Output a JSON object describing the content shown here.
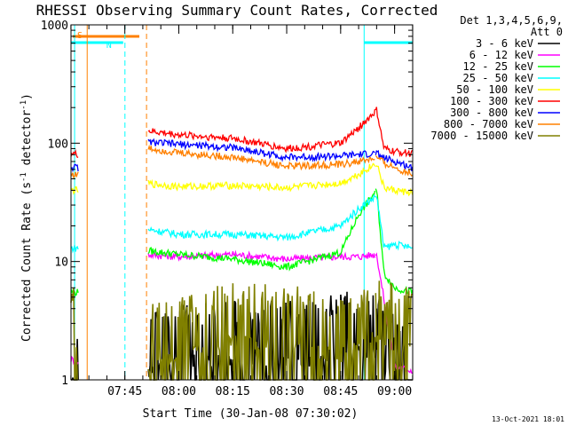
{
  "chart_data": {
    "type": "line",
    "title": "RHESSI Observing Summary Count Rates, Corrected",
    "xlabel": "Start Time (30-Jan-08 07:30:02)",
    "ylabel_main": "Corrected Count Rate (s",
    "ylabel_sup1": "-1",
    "ylabel_mid": " detector",
    "ylabel_sup2": "-1",
    "ylabel_end": ")",
    "y_scale": "log",
    "ylim": [
      1,
      1000
    ],
    "xlim_minutes": [
      0,
      95
    ],
    "x_ticks": [
      {
        "label": "07:45",
        "minutes": 14.97
      },
      {
        "label": "08:00",
        "minutes": 29.97
      },
      {
        "label": "08:15",
        "minutes": 44.97
      },
      {
        "label": "08:30",
        "minutes": 59.97
      },
      {
        "label": "08:45",
        "minutes": 74.97
      },
      {
        "label": "09:00",
        "minutes": 89.97
      }
    ],
    "y_ticks": [
      {
        "label": "1",
        "value": 1
      },
      {
        "label": "10",
        "value": 10
      },
      {
        "label": "100",
        "value": 100
      },
      {
        "label": "1000",
        "value": 1000
      }
    ],
    "legend_header": [
      "Det 1,3,4,5,6,9,",
      "Att 0"
    ],
    "legend_position": "right",
    "series": [
      {
        "name": "3 - 6 keV",
        "color": "#000000",
        "x": [
          0,
          2,
          20,
          30,
          45,
          60,
          75,
          80,
          85,
          90,
          95
        ],
        "values": [
          1.5,
          1.4,
          1.6,
          2.0,
          2.2,
          2.0,
          2.4,
          2.5,
          2.4,
          1.5,
          1.2
        ]
      },
      {
        "name": "6 - 12 keV",
        "color": "#ff00ff",
        "x": [
          0,
          2,
          20,
          30,
          45,
          60,
          75,
          80,
          85,
          90,
          95
        ],
        "values": [
          1.5,
          1.4,
          11.5,
          11.0,
          11.5,
          10.5,
          11.0,
          11.0,
          11.5,
          1.3,
          1.2
        ]
      },
      {
        "name": "12 - 25 keV",
        "color": "#00ff00",
        "x": [
          0,
          2,
          20,
          30,
          45,
          60,
          75,
          80,
          85,
          87,
          90,
          95
        ],
        "values": [
          5.5,
          5.5,
          12.5,
          11.5,
          10.5,
          9.0,
          12.0,
          25.0,
          40.0,
          8.0,
          6.0,
          5.5
        ]
      },
      {
        "name": "25 - 50 keV",
        "color": "#00ffff",
        "x": [
          0,
          2,
          20,
          30,
          45,
          60,
          75,
          80,
          85,
          87,
          90,
          95
        ],
        "values": [
          13,
          13,
          19,
          17,
          17,
          16,
          20,
          28,
          36,
          13,
          14,
          13
        ]
      },
      {
        "name": "50 - 100 keV",
        "color": "#ffff00",
        "x": [
          0,
          2,
          20,
          30,
          45,
          60,
          75,
          80,
          85,
          87,
          90,
          95
        ],
        "values": [
          40,
          40,
          46,
          43,
          44,
          42,
          46,
          55,
          68,
          42,
          40,
          38
        ]
      },
      {
        "name": "100 - 300 keV",
        "color": "#ff0000",
        "x": [
          0,
          2,
          20,
          30,
          45,
          60,
          75,
          80,
          85,
          87,
          90,
          95
        ],
        "values": [
          82,
          80,
          128,
          118,
          110,
          90,
          100,
          135,
          190,
          90,
          85,
          82
        ]
      },
      {
        "name": "300 - 800 keV",
        "color": "#0000ff",
        "x": [
          0,
          2,
          20,
          30,
          45,
          60,
          75,
          80,
          85,
          87,
          90,
          95
        ],
        "values": [
          63,
          62,
          103,
          98,
          92,
          76,
          78,
          80,
          82,
          75,
          70,
          62
        ]
      },
      {
        "name": "800 - 7000 keV",
        "color": "#ff8000",
        "x": [
          0,
          2,
          20,
          30,
          45,
          60,
          75,
          80,
          85,
          87,
          90,
          95
        ],
        "values": [
          55,
          54,
          92,
          83,
          76,
          64,
          66,
          70,
          75,
          68,
          62,
          55
        ]
      },
      {
        "name": "7000 - 15000 keV",
        "color": "#808000",
        "x": [
          0,
          2,
          20,
          30,
          45,
          60,
          75,
          80,
          85,
          90,
          95
        ],
        "values": [
          2.8,
          2.7,
          1.8,
          2.3,
          3.0,
          2.8,
          2.3,
          2.9,
          3.3,
          2.9,
          2.5
        ]
      }
    ],
    "bars": [
      {
        "label": "S",
        "color": "#ff8000",
        "x_start": 0.5,
        "x_end": 19.0
      },
      {
        "label": "N",
        "color": "#00ffff",
        "x_start": 0.0,
        "x_end": 14.5
      },
      {
        "label": "",
        "color": "#00ffff",
        "x_start": 81.5,
        "x_end": 95.0
      }
    ],
    "timestamp": "13-Oct-2021 18:01"
  }
}
